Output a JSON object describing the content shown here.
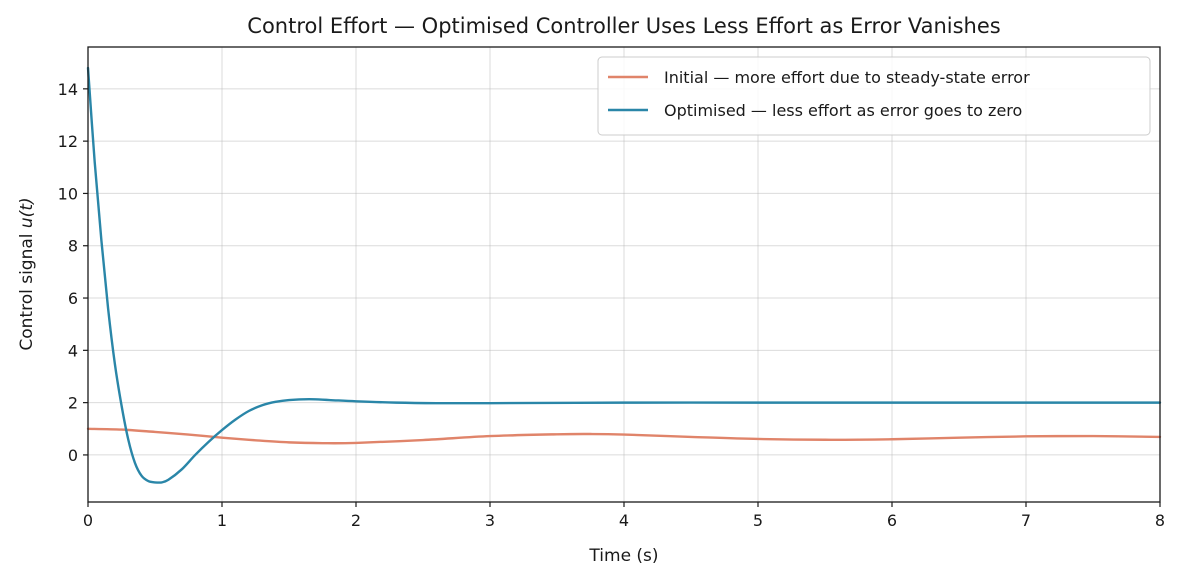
{
  "chart_data": {
    "type": "line",
    "title": "Control Effort — Optimised Controller Uses Less Effort as Error Vanishes",
    "xlabel": "Time (s)",
    "ylabel_prefix": "Control signal ",
    "ylabel_math": "u(t)",
    "xlim": [
      0,
      8
    ],
    "ylim": [
      -1.8,
      15.6
    ],
    "xticks": [
      0,
      1,
      2,
      3,
      4,
      5,
      6,
      7,
      8
    ],
    "yticks": [
      0,
      2,
      4,
      6,
      8,
      10,
      12,
      14
    ],
    "grid": true,
    "legend_position": "top-right",
    "series": [
      {
        "name": "Initial — more effort due to steady-state error",
        "color": "#e0846a",
        "x": [
          0,
          0.25,
          0.5,
          0.75,
          1.0,
          1.25,
          1.5,
          1.75,
          2.0,
          2.5,
          3.0,
          3.5,
          3.75,
          4.0,
          4.5,
          5.0,
          5.5,
          6.0,
          6.5,
          7.0,
          7.5,
          8.0
        ],
        "y": [
          1.0,
          0.97,
          0.88,
          0.78,
          0.66,
          0.56,
          0.48,
          0.45,
          0.46,
          0.57,
          0.72,
          0.79,
          0.8,
          0.78,
          0.69,
          0.61,
          0.58,
          0.6,
          0.66,
          0.71,
          0.72,
          0.69
        ]
      },
      {
        "name": "Optimised — less effort as error goes to zero",
        "color": "#2a86a8",
        "x": [
          0,
          0.05,
          0.1,
          0.15,
          0.2,
          0.25,
          0.3,
          0.35,
          0.4,
          0.45,
          0.5,
          0.55,
          0.6,
          0.7,
          0.8,
          0.9,
          1.0,
          1.1,
          1.2,
          1.3,
          1.4,
          1.5,
          1.65,
          1.8,
          2.0,
          2.3,
          2.6,
          3.0,
          4.0,
          5.0,
          6.0,
          7.0,
          8.0
        ],
        "y": [
          14.8,
          11.2,
          8.2,
          5.6,
          3.5,
          1.9,
          0.6,
          -0.3,
          -0.8,
          -1.0,
          -1.05,
          -1.05,
          -0.95,
          -0.55,
          0.0,
          0.5,
          0.95,
          1.35,
          1.68,
          1.9,
          2.03,
          2.1,
          2.13,
          2.1,
          2.05,
          2.0,
          1.98,
          1.98,
          2.0,
          2.0,
          2.0,
          2.0,
          2.0
        ]
      }
    ]
  }
}
